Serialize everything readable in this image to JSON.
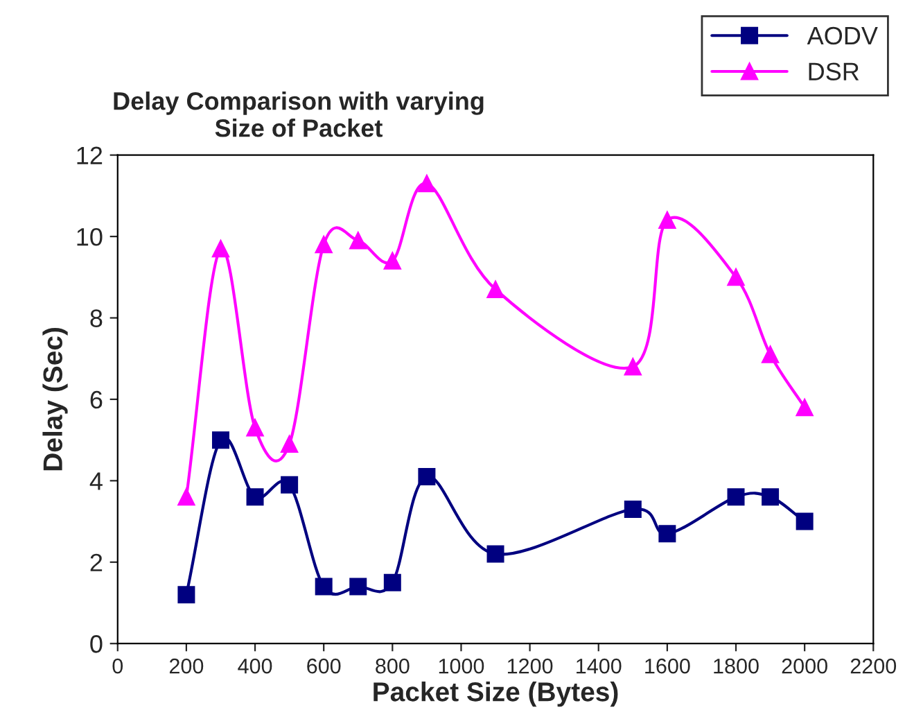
{
  "chart_data": {
    "type": "line",
    "title": "Delay Comparison with varying\nSize of Packet",
    "xlabel": "Packet Size (Bytes)",
    "ylabel": "Delay (Sec)",
    "x": [
      200,
      300,
      400,
      500,
      600,
      700,
      800,
      900,
      1100,
      1500,
      1600,
      1800,
      1900,
      2000
    ],
    "series": [
      {
        "name": "AODV",
        "color": "#000080",
        "marker": "square",
        "values": [
          1.2,
          5.0,
          3.6,
          3.9,
          1.4,
          1.4,
          1.5,
          4.1,
          2.2,
          3.3,
          2.7,
          3.6,
          3.6,
          3.0
        ]
      },
      {
        "name": "DSR",
        "color": "#ff00ff",
        "marker": "triangle",
        "values": [
          3.6,
          9.7,
          5.3,
          4.9,
          9.8,
          9.9,
          9.4,
          11.3,
          8.7,
          6.8,
          10.4,
          9.0,
          7.1,
          5.8
        ]
      }
    ],
    "xlim": [
      0,
      2200
    ],
    "xticks": [
      0,
      200,
      400,
      600,
      800,
      1000,
      1200,
      1400,
      1600,
      1800,
      2000,
      2200
    ],
    "ylim": [
      0,
      12
    ],
    "yticks": [
      0,
      2,
      4,
      6,
      8,
      10,
      12
    ],
    "grid": false,
    "legend": "top right",
    "line_style": "solid"
  }
}
